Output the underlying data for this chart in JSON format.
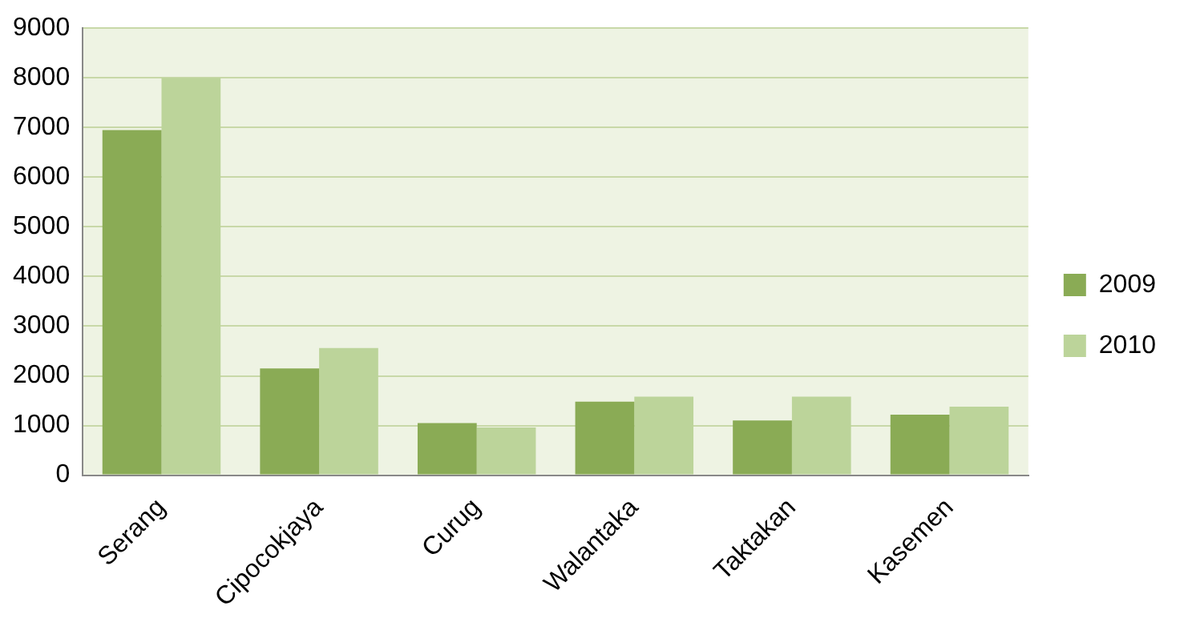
{
  "chart_data": {
    "type": "bar",
    "categories": [
      "Serang",
      "Cipocokjaya",
      "Curug",
      "Walantaka",
      "Taktakan",
      "Kasemen"
    ],
    "series": [
      {
        "name": "2009",
        "color": "#8aab55",
        "values": [
          6950,
          2150,
          1050,
          1480,
          1100,
          1220
        ]
      },
      {
        "name": "2010",
        "color": "#bcd49a",
        "values": [
          8000,
          2560,
          960,
          1580,
          1580,
          1380
        ]
      }
    ],
    "ylim": [
      0,
      9000
    ],
    "yticks": [
      0,
      1000,
      2000,
      3000,
      4000,
      5000,
      6000,
      7000,
      8000,
      9000
    ],
    "grid": "y",
    "legend": "right"
  }
}
